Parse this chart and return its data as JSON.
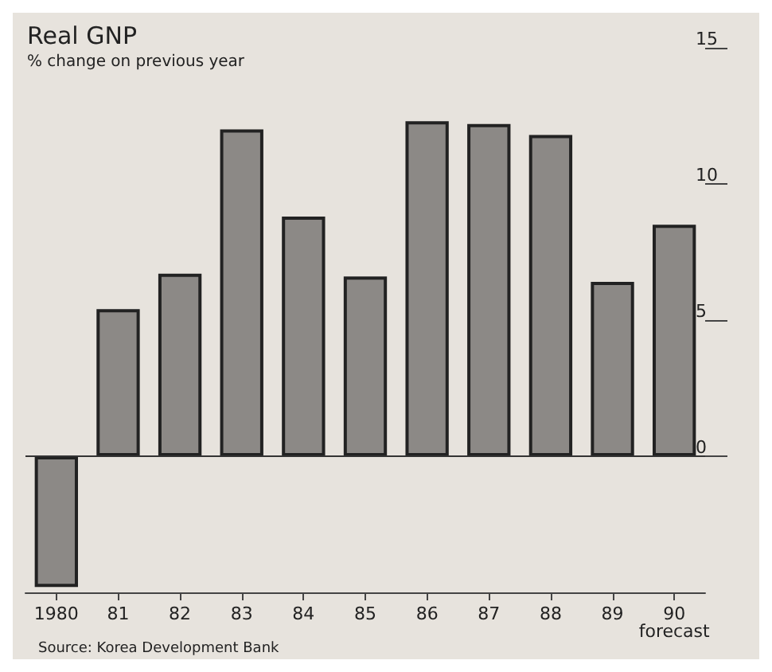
{
  "chart_data": {
    "type": "bar",
    "title": "Real GNP",
    "subtitle": "% change on previous year",
    "categories": [
      "1980",
      "81",
      "82",
      "83",
      "84",
      "85",
      "86",
      "87",
      "88",
      "89",
      "90\nforecast"
    ],
    "values": [
      -4.8,
      5.4,
      6.7,
      12.0,
      8.8,
      6.6,
      12.3,
      12.2,
      11.8,
      6.4,
      8.5
    ],
    "color": "#8c8986",
    "ylim": [
      -5,
      15
    ],
    "yticks": [
      0,
      5,
      10,
      15
    ],
    "ref_lines": [
      {
        "axis": "y",
        "value": 0,
        "color": "#333333"
      }
    ],
    "annotations": [
      "Source: Korea Development Bank"
    ]
  }
}
